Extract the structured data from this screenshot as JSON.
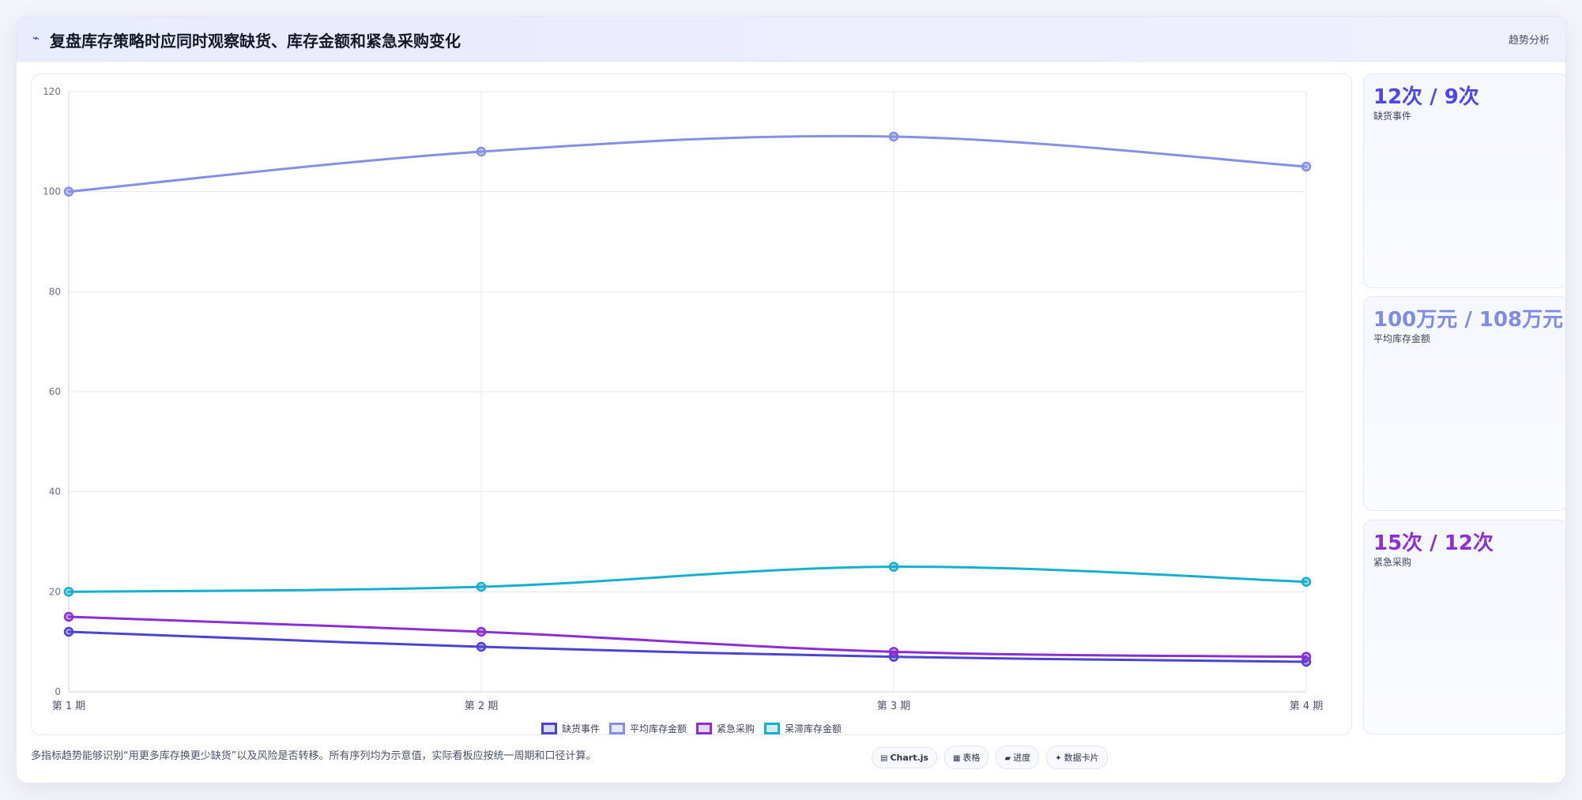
{
  "header": {
    "icon": "trend-line-icon",
    "title": "复盘库存策略时应同时观察缺货、库存金额和紧急采购变化",
    "tag": "趋势分析"
  },
  "stats": [
    {
      "value": "12次 / 9次",
      "label": "缺货事件",
      "color": "#4f46e5"
    },
    {
      "value": "100万元 / 108万元",
      "label": "平均库存金额",
      "color": "#7f8ce6"
    },
    {
      "value": "15次 / 12次",
      "label": "紧急采购",
      "color": "#8b2fd6"
    }
  ],
  "footer": {
    "note": "多指标趋势能够识别“用更多库存换更少缺货”以及风险是否转移。所有序列均为示意值，实际看板应按统一周期和口径计算。",
    "pills": [
      {
        "icon": "chart-icon",
        "label": "Chart.js"
      },
      {
        "icon": "table-icon",
        "label": "表格"
      },
      {
        "icon": "progress-icon",
        "label": "进度"
      },
      {
        "icon": "card-icon",
        "label": "数据卡片"
      }
    ]
  },
  "chart_data": {
    "type": "line",
    "categories": [
      "第 1 期",
      "第 2 期",
      "第 3 期",
      "第 4 期"
    ],
    "ylim": [
      0,
      120
    ],
    "yticks": [
      0,
      20,
      40,
      60,
      80,
      100,
      120
    ],
    "grid": true,
    "legend_position": "bottom",
    "series": [
      {
        "name": "缺货事件",
        "values": [
          12,
          9,
          7,
          6
        ],
        "color": "#4b44d0"
      },
      {
        "name": "平均库存金额",
        "values": [
          100,
          108,
          111,
          105
        ],
        "color": "#8590e2"
      },
      {
        "name": "紧急采购",
        "values": [
          15,
          12,
          8,
          7
        ],
        "color": "#8a2fd4"
      },
      {
        "name": "呆滞库存金额",
        "values": [
          20,
          21,
          25,
          22
        ],
        "color": "#14b0cc"
      }
    ]
  }
}
